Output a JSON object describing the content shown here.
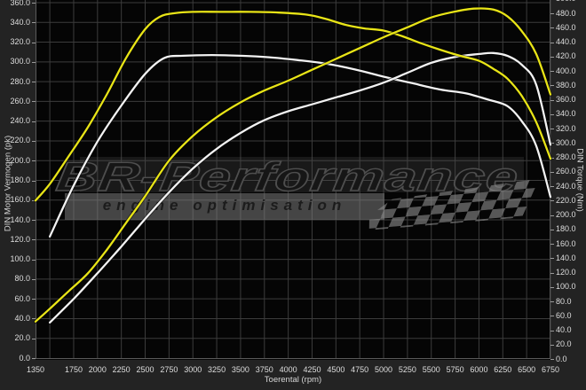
{
  "chart": {
    "x_axis_title": "Toerental (rpm)",
    "y_axis_left_title": "DIN Motor Vermogen (pk)",
    "y_axis_right_title": "DIN Torque (Nm)",
    "watermark_line1": "BR-Performance",
    "watermark_line2": "engine optimisation"
  },
  "colors": {
    "background": "#232323",
    "plot_background": "#050505",
    "gridline": "#3c3c3c",
    "plot_border": "#5a5a5a",
    "tick_text": "#dedede",
    "curve_yellow": "#e8e417",
    "curve_white": "#f2f2f2"
  },
  "chart_data": {
    "type": "line",
    "title": "",
    "xlabel": "Toerental (rpm)",
    "ylabel_left": "DIN Motor Vermogen (pk)",
    "ylabel_right": "DIN Torque (Nm)",
    "grid": true,
    "legend": false,
    "x_range": [
      1350,
      6750
    ],
    "x_gridline_step": 250,
    "x_tick_labels": [
      1350,
      1750,
      2000,
      2250,
      2500,
      2750,
      3000,
      3250,
      3500,
      3750,
      4000,
      4250,
      4500,
      4750,
      5000,
      5250,
      5500,
      5750,
      6000,
      6250,
      6500,
      6750
    ],
    "y_left_range": [
      0,
      362
    ],
    "y_left_tick_step": 20,
    "y_left_tick_max": 360,
    "y_right_range": [
      0,
      498
    ],
    "y_right_tick_step": 20,
    "y_right_tick_max": 500,
    "tick_label_decimals": 1,
    "series": [
      {
        "name": "torque-white",
        "color": "#f2f2f2",
        "axis": "right",
        "unit": "Nm",
        "points": [
          [
            1500,
            170
          ],
          [
            1750,
            241
          ],
          [
            2000,
            302
          ],
          [
            2250,
            352
          ],
          [
            2500,
            396
          ],
          [
            2700,
            418
          ],
          [
            2900,
            421
          ],
          [
            3200,
            422
          ],
          [
            3500,
            421
          ],
          [
            3800,
            419
          ],
          [
            4100,
            415
          ],
          [
            4400,
            410
          ],
          [
            4700,
            402
          ],
          [
            5000,
            392
          ],
          [
            5300,
            383
          ],
          [
            5600,
            374
          ],
          [
            5860,
            369
          ],
          [
            6100,
            360
          ],
          [
            6300,
            351
          ],
          [
            6450,
            330
          ],
          [
            6600,
            296
          ],
          [
            6750,
            225
          ]
        ]
      },
      {
        "name": "power-white",
        "color": "#f2f2f2",
        "axis": "left",
        "unit": "pk",
        "points": [
          [
            1500,
            36
          ],
          [
            1750,
            60
          ],
          [
            2000,
            86
          ],
          [
            2250,
            113
          ],
          [
            2500,
            141
          ],
          [
            2750,
            168
          ],
          [
            3000,
            192
          ],
          [
            3250,
            212
          ],
          [
            3500,
            228
          ],
          [
            3750,
            241
          ],
          [
            4000,
            250
          ],
          [
            4250,
            257
          ],
          [
            4500,
            264
          ],
          [
            4750,
            271
          ],
          [
            5000,
            279
          ],
          [
            5250,
            289
          ],
          [
            5500,
            299
          ],
          [
            5750,
            305
          ],
          [
            6000,
            308
          ],
          [
            6150,
            309
          ],
          [
            6300,
            306
          ],
          [
            6450,
            297
          ],
          [
            6600,
            277
          ],
          [
            6750,
            216
          ]
        ]
      },
      {
        "name": "torque-yellow",
        "color": "#e8e417",
        "axis": "right",
        "unit": "Nm",
        "points": [
          [
            1350,
            220
          ],
          [
            1500,
            243
          ],
          [
            1700,
            282
          ],
          [
            1900,
            322
          ],
          [
            2100,
            368
          ],
          [
            2300,
            418
          ],
          [
            2500,
            458
          ],
          [
            2650,
            475
          ],
          [
            2800,
            480
          ],
          [
            3000,
            482
          ],
          [
            3300,
            482
          ],
          [
            3600,
            482
          ],
          [
            3900,
            481
          ],
          [
            4200,
            478
          ],
          [
            4400,
            472
          ],
          [
            4600,
            464
          ],
          [
            4800,
            459
          ],
          [
            5000,
            456
          ],
          [
            5200,
            448
          ],
          [
            5400,
            438
          ],
          [
            5600,
            429
          ],
          [
            5800,
            421
          ],
          [
            6000,
            414
          ],
          [
            6150,
            403
          ],
          [
            6300,
            389
          ],
          [
            6450,
            365
          ],
          [
            6600,
            329
          ],
          [
            6750,
            278
          ]
        ]
      },
      {
        "name": "power-yellow",
        "color": "#e8e417",
        "axis": "left",
        "unit": "pk",
        "points": [
          [
            1350,
            37
          ],
          [
            1500,
            50
          ],
          [
            1700,
            68
          ],
          [
            1900,
            86
          ],
          [
            2100,
            110
          ],
          [
            2300,
            137
          ],
          [
            2500,
            164
          ],
          [
            2750,
            200
          ],
          [
            3000,
            225
          ],
          [
            3250,
            244
          ],
          [
            3500,
            259
          ],
          [
            3750,
            271
          ],
          [
            4000,
            281
          ],
          [
            4250,
            292
          ],
          [
            4500,
            303
          ],
          [
            4750,
            314
          ],
          [
            5000,
            325
          ],
          [
            5250,
            335
          ],
          [
            5500,
            345
          ],
          [
            5750,
            351
          ],
          [
            5950,
            354
          ],
          [
            6150,
            353
          ],
          [
            6300,
            346
          ],
          [
            6450,
            331
          ],
          [
            6600,
            308
          ],
          [
            6750,
            267
          ]
        ]
      }
    ]
  }
}
